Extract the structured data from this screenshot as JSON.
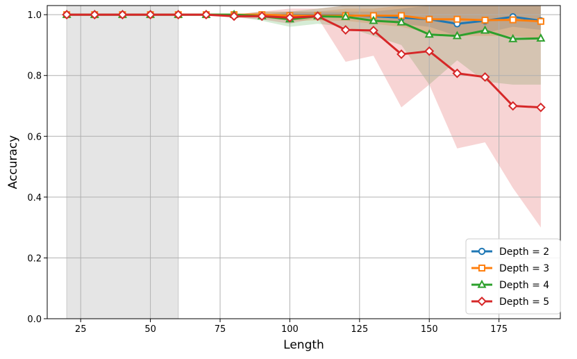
{
  "chart_data": {
    "type": "line",
    "title": "",
    "xlabel": "Length",
    "ylabel": "Accuracy",
    "xlim": [
      13,
      197
    ],
    "ylim": [
      0,
      1.03
    ],
    "xticks": [
      25,
      50,
      75,
      100,
      125,
      150,
      175
    ],
    "xtick_labels": [
      "25",
      "50",
      "75",
      "100",
      "125",
      "150",
      "175"
    ],
    "yticks": [
      0,
      0.2,
      0.4,
      0.6,
      0.8,
      1.0
    ],
    "ytick_labels": [
      "0.0",
      "0.2",
      "0.4",
      "0.6",
      "0.8",
      "1.0"
    ],
    "grid": true,
    "legend_position": "lower-right",
    "shaded_region": {
      "x": [
        20,
        60
      ],
      "color": "#e5e5e5"
    },
    "x": [
      20,
      30,
      40,
      50,
      60,
      70,
      80,
      90,
      100,
      110,
      120,
      130,
      140,
      150,
      160,
      170,
      180,
      190
    ],
    "series": [
      {
        "name": "Depth = 2",
        "color": "#1f77b4",
        "marker": "circle",
        "values": [
          1.0,
          1.0,
          1.0,
          1.0,
          1.0,
          1.0,
          1.0,
          0.998,
          0.998,
          0.998,
          0.998,
          0.995,
          0.99,
          0.985,
          0.97,
          0.98,
          0.993,
          0.98
        ],
        "band_lower": [
          1.0,
          1.0,
          1.0,
          1.0,
          1.0,
          1.0,
          1.0,
          0.995,
          0.99,
          0.99,
          0.99,
          0.98,
          0.97,
          0.96,
          0.93,
          0.94,
          0.96,
          0.95
        ],
        "band_upper": [
          1.0,
          1.0,
          1.0,
          1.0,
          1.0,
          1.0,
          1.0,
          1.0,
          1.01,
          1.01,
          1.01,
          1.01,
          1.02,
          1.03,
          1.03,
          1.03,
          1.03,
          1.03
        ]
      },
      {
        "name": "Depth = 3",
        "color": "#ff7f0e",
        "marker": "square",
        "values": [
          1.0,
          1.0,
          1.0,
          1.0,
          1.0,
          1.0,
          1.0,
          1.0,
          0.997,
          0.997,
          0.997,
          0.997,
          0.997,
          0.985,
          0.985,
          0.982,
          0.983,
          0.978
        ],
        "band_lower": [
          1.0,
          1.0,
          1.0,
          1.0,
          1.0,
          1.0,
          1.0,
          0.99,
          0.98,
          0.98,
          0.98,
          0.97,
          0.96,
          0.94,
          0.93,
          0.93,
          0.93,
          0.92
        ],
        "band_upper": [
          1.0,
          1.0,
          1.0,
          1.0,
          1.0,
          1.0,
          1.0,
          1.01,
          1.01,
          1.01,
          1.02,
          1.02,
          1.03,
          1.03,
          1.03,
          1.03,
          1.03,
          1.03
        ]
      },
      {
        "name": "Depth = 4",
        "color": "#2ca02c",
        "marker": "triangle",
        "values": [
          1.0,
          1.0,
          1.0,
          1.0,
          1.0,
          1.0,
          1.0,
          0.995,
          0.985,
          0.995,
          0.993,
          0.98,
          0.975,
          0.935,
          0.93,
          0.948,
          0.92,
          0.922
        ],
        "band_lower": [
          1.0,
          1.0,
          1.0,
          1.0,
          1.0,
          1.0,
          0.995,
          0.98,
          0.96,
          0.97,
          0.96,
          0.93,
          0.9,
          0.77,
          0.85,
          0.78,
          0.77,
          0.77
        ],
        "band_upper": [
          1.0,
          1.0,
          1.0,
          1.0,
          1.0,
          1.0,
          1.0,
          1.01,
          1.01,
          1.02,
          1.03,
          1.03,
          1.03,
          1.03,
          1.03,
          1.03,
          1.03,
          1.03
        ]
      },
      {
        "name": "Depth = 5",
        "color": "#d62728",
        "marker": "diamond",
        "values": [
          1.0,
          1.0,
          1.0,
          1.0,
          1.0,
          1.0,
          0.995,
          0.995,
          0.99,
          0.995,
          0.95,
          0.948,
          0.87,
          0.88,
          0.807,
          0.795,
          0.7,
          0.695
        ],
        "band_lower": [
          1.0,
          1.0,
          1.0,
          1.0,
          1.0,
          1.0,
          0.99,
          0.985,
          0.97,
          0.99,
          0.845,
          0.865,
          0.695,
          0.77,
          0.56,
          0.58,
          0.43,
          0.3
        ],
        "band_upper": [
          1.0,
          1.0,
          1.0,
          1.0,
          1.0,
          1.0,
          1.0,
          1.01,
          1.02,
          1.02,
          1.03,
          1.03,
          1.03,
          1.03,
          1.03,
          1.03,
          1.03,
          1.03
        ]
      }
    ]
  }
}
